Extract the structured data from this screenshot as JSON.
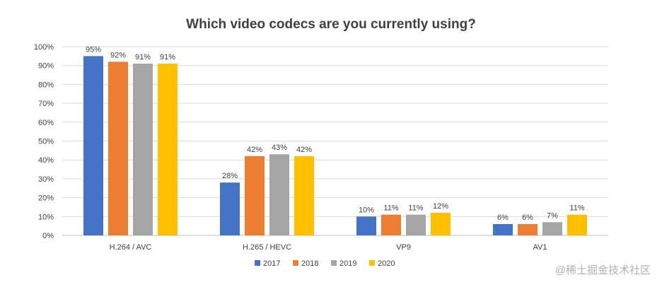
{
  "chart_data": {
    "type": "bar",
    "title": "Which video codecs are you currently using?",
    "categories": [
      "H.264 / AVC",
      "H.265 / HEVC",
      "VP9",
      "AV1"
    ],
    "series": [
      {
        "name": "2017",
        "color": "#4472C4",
        "values": [
          95,
          28,
          10,
          6
        ]
      },
      {
        "name": "2018",
        "color": "#ED7D31",
        "values": [
          92,
          42,
          11,
          6
        ]
      },
      {
        "name": "2019",
        "color": "#A5A5A5",
        "values": [
          91,
          43,
          11,
          7
        ]
      },
      {
        "name": "2020",
        "color": "#FFC000",
        "values": [
          91,
          42,
          12,
          11
        ]
      }
    ],
    "yticks": [
      "0%",
      "10%",
      "20%",
      "30%",
      "40%",
      "50%",
      "60%",
      "70%",
      "80%",
      "90%",
      "100%"
    ],
    "ylim": [
      0,
      100
    ],
    "grid": true,
    "legend": "bottom",
    "value_suffix": "%"
  },
  "watermark": "@稀土掘金技术社区"
}
